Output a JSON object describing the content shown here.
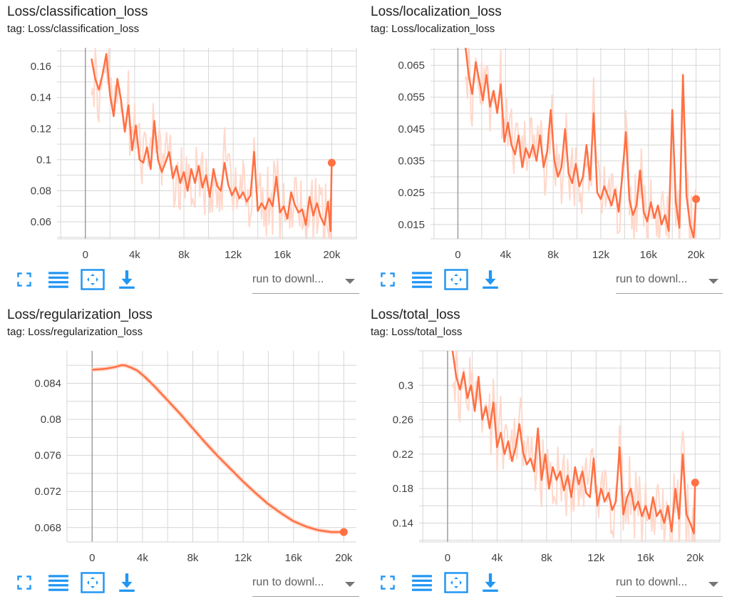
{
  "colors": {
    "raw": "#ffd8cb",
    "smoothed": "#ff7043",
    "grid": "#d6d6d6",
    "axis": "#9e9e9e",
    "tick_text": "#424242",
    "icon": "#2196f3"
  },
  "toolbar": {
    "icons": [
      "fullscreen-icon",
      "list-icon",
      "fit-domain-icon",
      "download-icon"
    ],
    "run_select": "run to downl..."
  },
  "chart_data": [
    {
      "type": "line",
      "title": "Loss/classification_loss",
      "tag": "tag: Loss/classification_loss",
      "xlim": [
        -2300,
        22000
      ],
      "ylim": [
        0.049,
        0.172
      ],
      "xticks": [
        0,
        4000,
        8000,
        12000,
        16000,
        20000
      ],
      "xtick_labels": [
        "0",
        "4k",
        "8k",
        "12k",
        "16k",
        "20k"
      ],
      "yticks": [
        0.06,
        0.08,
        0.1,
        0.12,
        0.14,
        0.16
      ],
      "ytick_labels": [
        "0.06",
        "0.08",
        "0.1",
        "0.12",
        "0.14",
        "0.16"
      ],
      "grid": true,
      "series": [
        {
          "smoothed": {
            "x": [
              500,
              800,
              1100,
              1400,
              1700,
              2000,
              2300,
              2600,
              2900,
              3200,
              3500,
              3800,
              4100,
              4400,
              4700,
              5000,
              5300,
              5600,
              5900,
              6200,
              6500,
              6800,
              7100,
              7400,
              7700,
              8000,
              8300,
              8600,
              8900,
              9200,
              9500,
              9800,
              10100,
              10400,
              10700,
              11000,
              11300,
              11600,
              11900,
              12200,
              12500,
              12800,
              13100,
              13400,
              13700,
              14000,
              14300,
              14600,
              14900,
              15200,
              15500,
              15800,
              16100,
              16400,
              16700,
              17000,
              17300,
              17600,
              17900,
              18200,
              18500,
              18800,
              19100,
              19400,
              19700,
              19900,
              20000
            ],
            "y": [
              0.165,
              0.152,
              0.145,
              0.155,
              0.168,
              0.142,
              0.128,
              0.152,
              0.138,
              0.118,
              0.135,
              0.106,
              0.122,
              0.1,
              0.098,
              0.108,
              0.094,
              0.125,
              0.1,
              0.092,
              0.098,
              0.105,
              0.088,
              0.096,
              0.085,
              0.092,
              0.08,
              0.094,
              0.085,
              0.096,
              0.082,
              0.09,
              0.076,
              0.094,
              0.083,
              0.08,
              0.098,
              0.084,
              0.077,
              0.082,
              0.075,
              0.079,
              0.073,
              0.077,
              0.105,
              0.067,
              0.072,
              0.068,
              0.075,
              0.07,
              0.089,
              0.066,
              0.07,
              0.062,
              0.079,
              0.071,
              0.066,
              0.068,
              0.058,
              0.076,
              0.064,
              0.072,
              0.063,
              0.058,
              0.073,
              0.054,
              0.098
            ]
          },
          "end_value": 0.098
        }
      ]
    },
    {
      "type": "line",
      "title": "Loss/localization_loss",
      "tag": "tag: Loss/localization_loss",
      "xlim": [
        -2300,
        22000
      ],
      "ylim": [
        0.0105,
        0.0705
      ],
      "xticks": [
        0,
        4000,
        8000,
        12000,
        16000,
        20000
      ],
      "xtick_labels": [
        "0",
        "4k",
        "8k",
        "12k",
        "16k",
        "20k"
      ],
      "yticks": [
        0.015,
        0.025,
        0.035,
        0.045,
        0.055,
        0.065
      ],
      "ytick_labels": [
        "0.015",
        "0.025",
        "0.035",
        "0.045",
        "0.055",
        "0.065"
      ],
      "grid": true,
      "series": [
        {
          "smoothed": {
            "x": [
              600,
              900,
              1200,
              1500,
              1800,
              2100,
              2400,
              2700,
              3000,
              3300,
              3600,
              3900,
              4200,
              4500,
              4800,
              5100,
              5400,
              5700,
              6000,
              6300,
              6600,
              6900,
              7200,
              7500,
              7800,
              8100,
              8400,
              8700,
              9000,
              9300,
              9600,
              9900,
              10200,
              10500,
              10800,
              11100,
              11400,
              11700,
              12000,
              12300,
              12600,
              12900,
              13200,
              13500,
              13800,
              14100,
              14400,
              14700,
              15000,
              15300,
              15600,
              15900,
              16200,
              16500,
              16800,
              17100,
              17400,
              17700,
              18000,
              18300,
              18600,
              18900,
              19200,
              19500,
              19800,
              20000
            ],
            "y": [
              0.072,
              0.062,
              0.056,
              0.066,
              0.06,
              0.054,
              0.062,
              0.052,
              0.057,
              0.05,
              0.059,
              0.041,
              0.047,
              0.04,
              0.037,
              0.043,
              0.033,
              0.039,
              0.036,
              0.04,
              0.035,
              0.043,
              0.033,
              0.038,
              0.051,
              0.035,
              0.03,
              0.033,
              0.045,
              0.031,
              0.028,
              0.034,
              0.027,
              0.03,
              0.04,
              0.029,
              0.05,
              0.025,
              0.023,
              0.027,
              0.024,
              0.021,
              0.026,
              0.019,
              0.03,
              0.044,
              0.023,
              0.018,
              0.021,
              0.032,
              0.019,
              0.016,
              0.022,
              0.017,
              0.021,
              0.015,
              0.018,
              0.013,
              0.051,
              0.022,
              0.014,
              0.062,
              0.024,
              0.015,
              0.011,
              0.023
            ]
          },
          "end_value": 0.023
        }
      ]
    },
    {
      "type": "line",
      "title": "Loss/regularization_loss",
      "tag": "tag: Loss/regularization_loss",
      "xlim": [
        -2000,
        21000
      ],
      "ylim": [
        0.0664,
        0.0876
      ],
      "xticks": [
        0,
        4000,
        8000,
        12000,
        16000,
        20000
      ],
      "xtick_labels": [
        "0",
        "4k",
        "8k",
        "12k",
        "16k",
        "20k"
      ],
      "yticks": [
        0.068,
        0.072,
        0.076,
        0.08,
        0.084
      ],
      "ytick_labels": [
        "0.068",
        "0.072",
        "0.076",
        "0.08",
        "0.084"
      ],
      "grid": true,
      "series": [
        {
          "smoothed": {
            "x": [
              0,
              1000,
              1800,
              2300,
              2600,
              3000,
              3600,
              4200,
              5000,
              6000,
              7000,
              8000,
              9000,
              10000,
              11000,
              12000,
              13000,
              14000,
              15000,
              16000,
              17000,
              18000,
              19000,
              20000
            ],
            "y": [
              0.0855,
              0.0856,
              0.0858,
              0.086,
              0.086,
              0.0858,
              0.0854,
              0.0847,
              0.0836,
              0.0821,
              0.0806,
              0.079,
              0.0774,
              0.0759,
              0.0745,
              0.0731,
              0.0718,
              0.0706,
              0.0696,
              0.0687,
              0.0681,
              0.0677,
              0.0675,
              0.0675
            ]
          },
          "end_value": 0.0675
        }
      ]
    },
    {
      "type": "line",
      "title": "Loss/total_loss",
      "tag": "tag: Loss/total_loss",
      "xlim": [
        -2300,
        22000
      ],
      "ylim": [
        0.118,
        0.34
      ],
      "xticks": [
        0,
        4000,
        8000,
        12000,
        16000,
        20000
      ],
      "xtick_labels": [
        "0",
        "4k",
        "8k",
        "12k",
        "16k",
        "20k"
      ],
      "yticks": [
        0.14,
        0.18,
        0.22,
        0.26,
        0.3
      ],
      "ytick_labels": [
        "0.14",
        "0.18",
        "0.22",
        "0.26",
        "0.3"
      ],
      "grid": true,
      "series": [
        {
          "smoothed": {
            "x": [
              400,
              700,
              1000,
              1300,
              1600,
              1900,
              2200,
              2500,
              2800,
              3100,
              3400,
              3700,
              4000,
              4300,
              4600,
              4900,
              5200,
              5500,
              5800,
              6100,
              6400,
              6700,
              7000,
              7300,
              7600,
              7900,
              8200,
              8500,
              8800,
              9100,
              9400,
              9700,
              10000,
              10300,
              10600,
              10900,
              11200,
              11500,
              11800,
              12100,
              12400,
              12700,
              13000,
              13300,
              13600,
              13900,
              14200,
              14500,
              14800,
              15100,
              15400,
              15700,
              16000,
              16300,
              16600,
              16900,
              17200,
              17500,
              17800,
              18100,
              18400,
              18700,
              19000,
              19300,
              19600,
              19900,
              20000
            ],
            "y": [
              0.34,
              0.31,
              0.295,
              0.315,
              0.285,
              0.3,
              0.27,
              0.31,
              0.26,
              0.275,
              0.25,
              0.28,
              0.228,
              0.245,
              0.22,
              0.235,
              0.212,
              0.228,
              0.255,
              0.222,
              0.208,
              0.215,
              0.2,
              0.25,
              0.19,
              0.22,
              0.18,
              0.205,
              0.19,
              0.2,
              0.178,
              0.195,
              0.17,
              0.205,
              0.185,
              0.2,
              0.175,
              0.17,
              0.215,
              0.16,
              0.18,
              0.165,
              0.175,
              0.155,
              0.165,
              0.228,
              0.15,
              0.17,
              0.18,
              0.155,
              0.165,
              0.148,
              0.16,
              0.145,
              0.17,
              0.148,
              0.155,
              0.14,
              0.16,
              0.13,
              0.18,
              0.145,
              0.22,
              0.15,
              0.14,
              0.128,
              0.187
            ]
          },
          "end_value": 0.187
        }
      ]
    }
  ]
}
